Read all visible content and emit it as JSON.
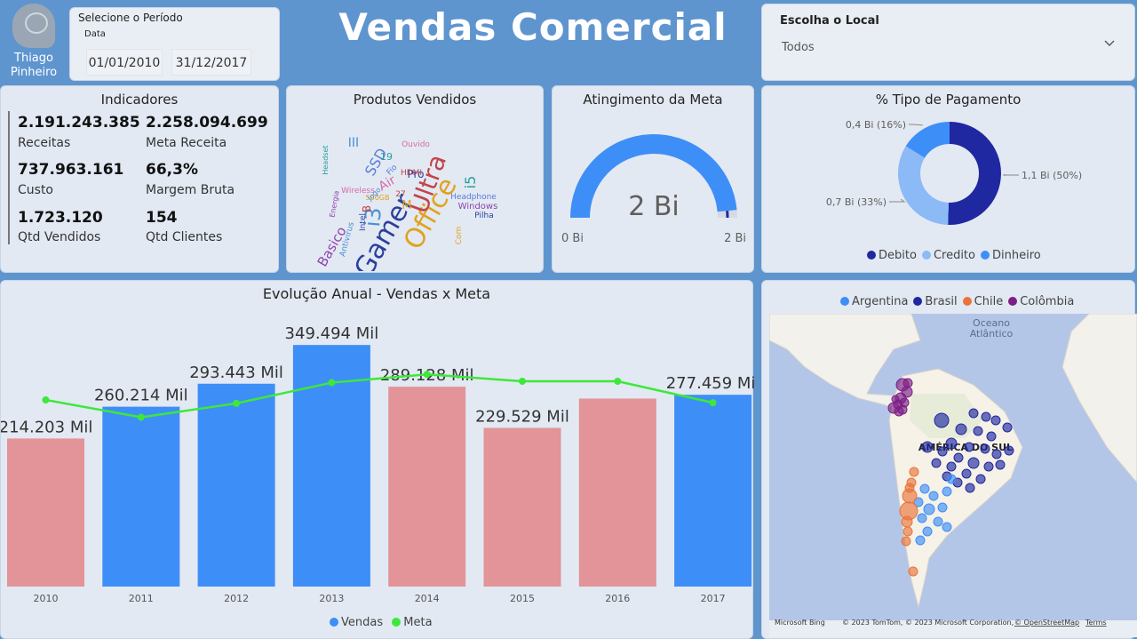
{
  "header": {
    "logo_name_line1": "Thiago",
    "logo_name_line2": "Pinheiro",
    "title": "Vendas Comercial"
  },
  "period_filter": {
    "label": "Selecione o Período",
    "field": "Data",
    "start_date": "01/01/2010",
    "end_date": "31/12/2017"
  },
  "local_filter": {
    "label": "Escolha o Local",
    "selected": "Todos"
  },
  "indicators": {
    "title": "Indicadores",
    "items": [
      {
        "value": "2.191.243.385",
        "label": "Receitas"
      },
      {
        "value": "2.258.094.699",
        "label": "Meta Receita"
      },
      {
        "value": "737.963.161",
        "label": "Custo"
      },
      {
        "value": "66,3%",
        "label": "Margem Bruta"
      },
      {
        "value": "1.723.120",
        "label": "Qtd Vendidos"
      },
      {
        "value": "154",
        "label": "Qtd Clientes"
      }
    ]
  },
  "word_cloud": {
    "title": "Produtos Vendidos",
    "words": [
      "Gamer",
      "Office",
      "Ultra",
      "i3",
      "i5",
      "Basico",
      "SSD",
      "Air",
      "Pro",
      "M",
      "B",
      "III",
      "19",
      "Windows",
      "Headphone",
      "Ouvido",
      "Pilha",
      "Com",
      "HDMI",
      "Antivirus",
      "Headset",
      "Energia",
      "Fio",
      "Wireless",
      "Intel",
      "500GB",
      "27",
      "Jogo"
    ],
    "colors": [
      "#2b3f9e",
      "#e0a31f",
      "#c2444a",
      "#4a8fd3",
      "#27a09a",
      "#8e44ad",
      "#5a7dd8",
      "#d86aa8"
    ]
  },
  "meta_gauge": {
    "title": "Atingimento da Meta",
    "value_label": "2 Bi",
    "min_label": "0 Bi",
    "max_label": "2 Bi",
    "fraction": 0.97,
    "color": "#3e8ef7"
  },
  "payment": {
    "title": "% Tipo de Pagamento",
    "chart_data": {
      "type": "pie",
      "title": "% Tipo de Pagamento",
      "categories": [
        "Debito",
        "Credito",
        "Dinheiro"
      ],
      "values": [
        50,
        33,
        16
      ],
      "data_labels": [
        "1,1 Bi (50%)",
        "0,7 Bi (33%)",
        "0,4 Bi (16%)"
      ],
      "colors": [
        "#1f28a0",
        "#8cbaf7",
        "#3e8ef7"
      ]
    }
  },
  "annual": {
    "title": "Evolução Anual - Vendas x Meta",
    "chart_data": {
      "type": "bar",
      "title": "Evolução Anual - Vendas x Meta",
      "categories": [
        "2010",
        "2011",
        "2012",
        "2013",
        "2014",
        "2015",
        "2016",
        "2017"
      ],
      "series": [
        {
          "name": "Vendas",
          "type": "bar",
          "values": [
            214203,
            260214,
            293443,
            349494,
            289128,
            229529,
            272000,
            277459
          ]
        },
        {
          "name": "Meta",
          "type": "line",
          "values": [
            270000,
            245000,
            265000,
            295000,
            307000,
            297000,
            297000,
            266000
          ]
        }
      ],
      "data_labels": [
        "214.203 Mil",
        "260.214 Mil",
        "293.443 Mil",
        "349.494 Mil",
        "289.128 Mil",
        "229.529 Mil",
        "",
        "277.459 Mil"
      ],
      "above_meta": [
        false,
        true,
        true,
        true,
        false,
        false,
        false,
        true
      ],
      "colors": {
        "above": "#3e8ef7",
        "below": "#e29499",
        "line": "#3ee83a"
      },
      "ylim": [
        0,
        360000
      ]
    },
    "legend": [
      "Vendas",
      "Meta"
    ]
  },
  "map": {
    "legend": [
      {
        "name": "Argentina",
        "color": "#3e8ef7"
      },
      {
        "name": "Brasil",
        "color": "#1f28a0"
      },
      {
        "name": "Chile",
        "color": "#e8743b"
      },
      {
        "name": "Colômbia",
        "color": "#7b1f86"
      }
    ],
    "ocean_label_1": "Oceano",
    "ocean_label_2": "Atlântico",
    "continent_label": "AMÉRICA DO SUL",
    "bing": "Microsoft Bing",
    "copyright": "© 2023 TomTom, © 2023 Microsoft Corporation,",
    "osm": "© OpenStreetMap",
    "terms": "Terms"
  }
}
